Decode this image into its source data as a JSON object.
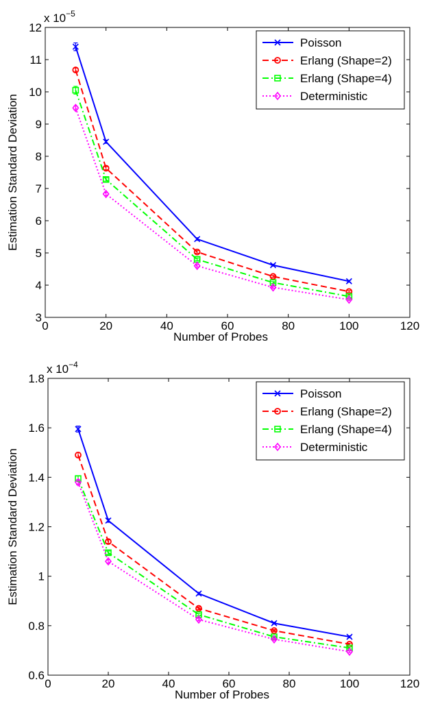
{
  "chart_data": [
    {
      "type": "line",
      "xlabel": "Number of Probes",
      "ylabel": "Estimation Standard Deviation",
      "y_multiplier": {
        "base": "x 10",
        "exponent": "−5"
      },
      "xlim": [
        0,
        120
      ],
      "ylim": [
        3,
        12
      ],
      "xticks": [
        0,
        20,
        40,
        60,
        80,
        100,
        120
      ],
      "yticks": [
        3,
        4,
        5,
        6,
        7,
        8,
        9,
        10,
        11,
        12
      ],
      "grid": false,
      "legend_position": "top-right",
      "x": [
        10,
        20,
        50,
        75,
        100
      ],
      "series": [
        {
          "name": "Poisson",
          "values": [
            11.4,
            8.45,
            5.43,
            4.62,
            4.12
          ],
          "errors": [
            0.12,
            0.05,
            0.04,
            0.03,
            0.03
          ],
          "color": "#0000ff",
          "dash": "solid",
          "marker": "x"
        },
        {
          "name": "Erlang (Shape=2)",
          "values": [
            10.68,
            7.63,
            5.03,
            4.27,
            3.8
          ],
          "errors": [
            0.06,
            0.05,
            0.04,
            0.03,
            0.03
          ],
          "color": "#ff0000",
          "dash": "dashed",
          "marker": "circle"
        },
        {
          "name": "Erlang (Shape=4)",
          "values": [
            10.05,
            7.28,
            4.8,
            4.08,
            3.65
          ],
          "errors": [
            0.12,
            0.05,
            0.04,
            0.03,
            0.03
          ],
          "color": "#00ff00",
          "dash": "dashdot",
          "marker": "square"
        },
        {
          "name": "Deterministic",
          "values": [
            9.5,
            6.83,
            4.6,
            3.93,
            3.55
          ],
          "errors": [
            0.06,
            0.05,
            0.04,
            0.03,
            0.03
          ],
          "color": "#ff00ff",
          "dash": "dotted",
          "marker": "diamond"
        }
      ]
    },
    {
      "type": "line",
      "xlabel": "Number of Probes",
      "ylabel": "Estimation Standard Deviation",
      "y_multiplier": {
        "base": "x 10",
        "exponent": "−4"
      },
      "xlim": [
        0,
        120
      ],
      "ylim": [
        0.6,
        1.8
      ],
      "xticks": [
        0,
        20,
        40,
        60,
        80,
        100,
        120
      ],
      "yticks": [
        0.6,
        0.8,
        1,
        1.2,
        1.4,
        1.6,
        1.8
      ],
      "grid": false,
      "legend_position": "top-right",
      "x": [
        10,
        20,
        50,
        75,
        100
      ],
      "series": [
        {
          "name": "Poisson",
          "values": [
            1.595,
            1.225,
            0.93,
            0.81,
            0.755
          ],
          "errors": [
            0.012,
            0.007,
            0.005,
            0.004,
            0.004
          ],
          "color": "#0000ff",
          "dash": "solid",
          "marker": "x"
        },
        {
          "name": "Erlang (Shape=2)",
          "values": [
            1.49,
            1.14,
            0.87,
            0.78,
            0.725
          ],
          "errors": [
            0.01,
            0.007,
            0.005,
            0.004,
            0.004
          ],
          "color": "#ff0000",
          "dash": "dashed",
          "marker": "circle"
        },
        {
          "name": "Erlang (Shape=4)",
          "values": [
            1.395,
            1.095,
            0.845,
            0.755,
            0.71
          ],
          "errors": [
            0.01,
            0.007,
            0.005,
            0.004,
            0.004
          ],
          "color": "#00ff00",
          "dash": "dashdot",
          "marker": "square"
        },
        {
          "name": "Deterministic",
          "values": [
            1.38,
            1.06,
            0.825,
            0.745,
            0.695
          ],
          "errors": [
            0.01,
            0.007,
            0.005,
            0.004,
            0.004
          ],
          "color": "#ff00ff",
          "dash": "dotted",
          "marker": "diamond"
        }
      ]
    }
  ]
}
